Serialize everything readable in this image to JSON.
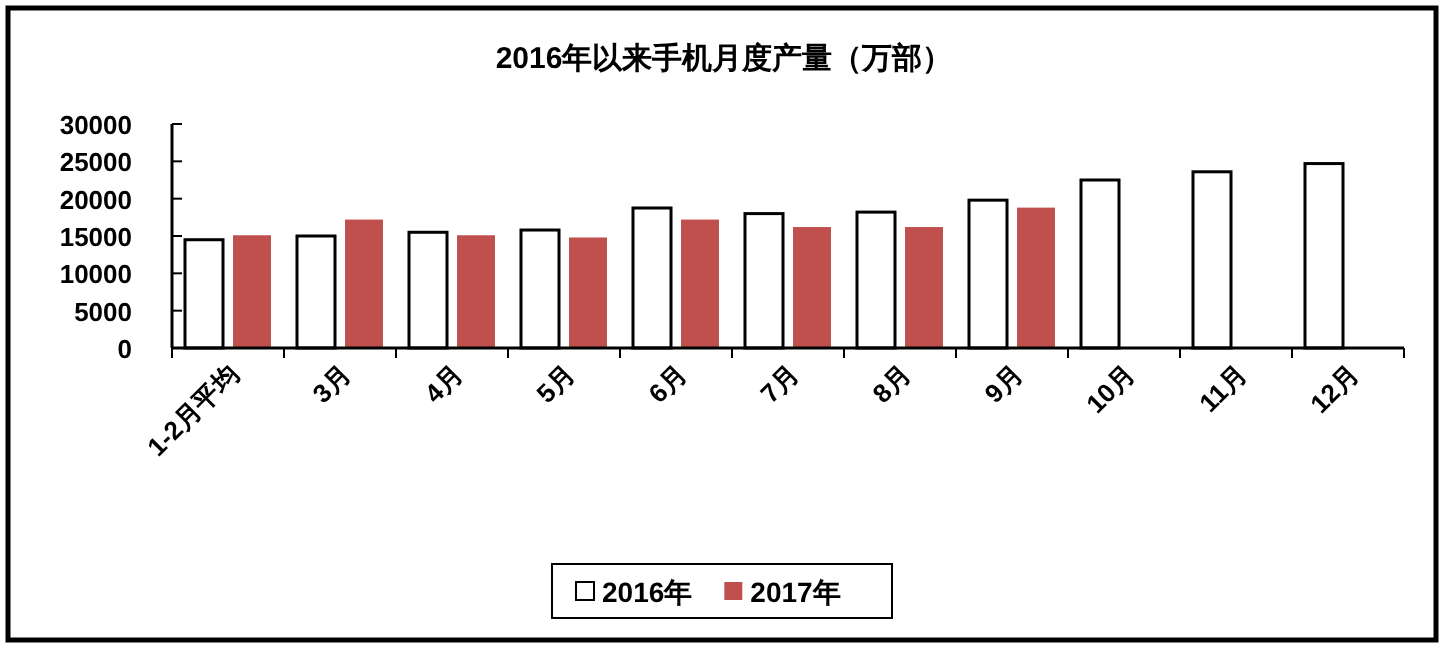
{
  "chart_data": {
    "type": "bar",
    "title": "2016年以来手机月度产量（万部）",
    "categories": [
      "1-2月平均",
      "3月",
      "4月",
      "5月",
      "6月",
      "7月",
      "8月",
      "9月",
      "10月",
      "11月",
      "12月"
    ],
    "series": [
      {
        "name": "2016年",
        "color": "#ffffff",
        "values": [
          14500,
          15000,
          15500,
          15800,
          18750,
          18000,
          18200,
          19800,
          22500,
          23600,
          24700
        ]
      },
      {
        "name": "2017年",
        "color": "#c0504d",
        "values": [
          15100,
          17200,
          15100,
          14800,
          17200,
          16200,
          16200,
          18800,
          null,
          null,
          null
        ]
      }
    ],
    "ylim": [
      0,
      30000
    ],
    "yticks": [
      0,
      5000,
      10000,
      15000,
      20000,
      25000,
      30000
    ],
    "legend": "bottom"
  }
}
